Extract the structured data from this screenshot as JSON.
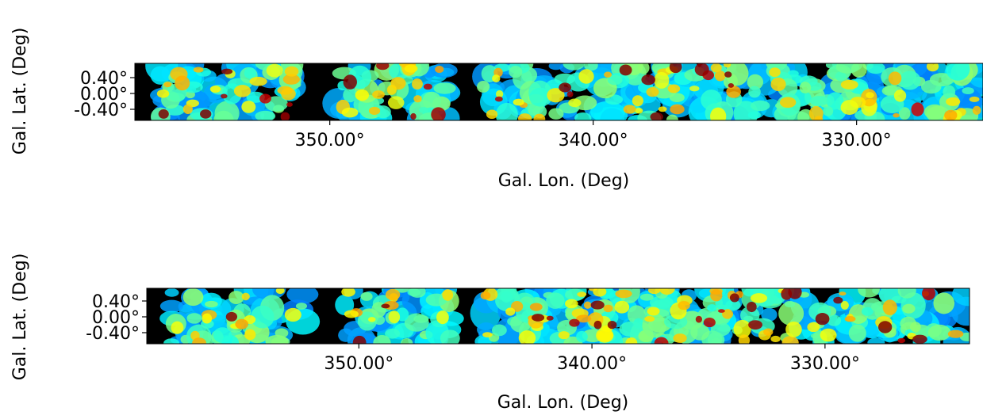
{
  "chart_data": [
    {
      "type": "heatmap",
      "xlabel": "Gal. Lon. (Deg)",
      "ylabel": "Gal. Lat. (Deg)",
      "xlim": [
        357.4,
        325.2
      ],
      "ylim": [
        -0.68,
        0.76
      ],
      "xticks": [
        {
          "value": 350,
          "label": "350.00°"
        },
        {
          "value": 340,
          "label": "340.00°"
        },
        {
          "value": 330,
          "label": "330.00°"
        }
      ],
      "yticks": [
        {
          "value": 0.4,
          "label": "0.40°"
        },
        {
          "value": 0,
          "label": "0.00°"
        },
        {
          "value": -0.4,
          "label": "-0.40°"
        }
      ]
    },
    {
      "type": "heatmap",
      "xlabel": "Gal. Lon. (Deg)",
      "ylabel": "Gal. Lat. (Deg)",
      "xlim": [
        359.1,
        323.8
      ],
      "ylim": [
        -0.68,
        0.72
      ],
      "xticks": [
        {
          "value": 350,
          "label": "350.00°"
        },
        {
          "value": 340,
          "label": "340.00°"
        },
        {
          "value": 330,
          "label": "330.00°"
        }
      ],
      "yticks": [
        {
          "value": 0.4,
          "label": "0.40°"
        },
        {
          "value": 0,
          "label": "0.00°"
        },
        {
          "value": -0.4,
          "label": "-0.40°"
        }
      ]
    }
  ]
}
